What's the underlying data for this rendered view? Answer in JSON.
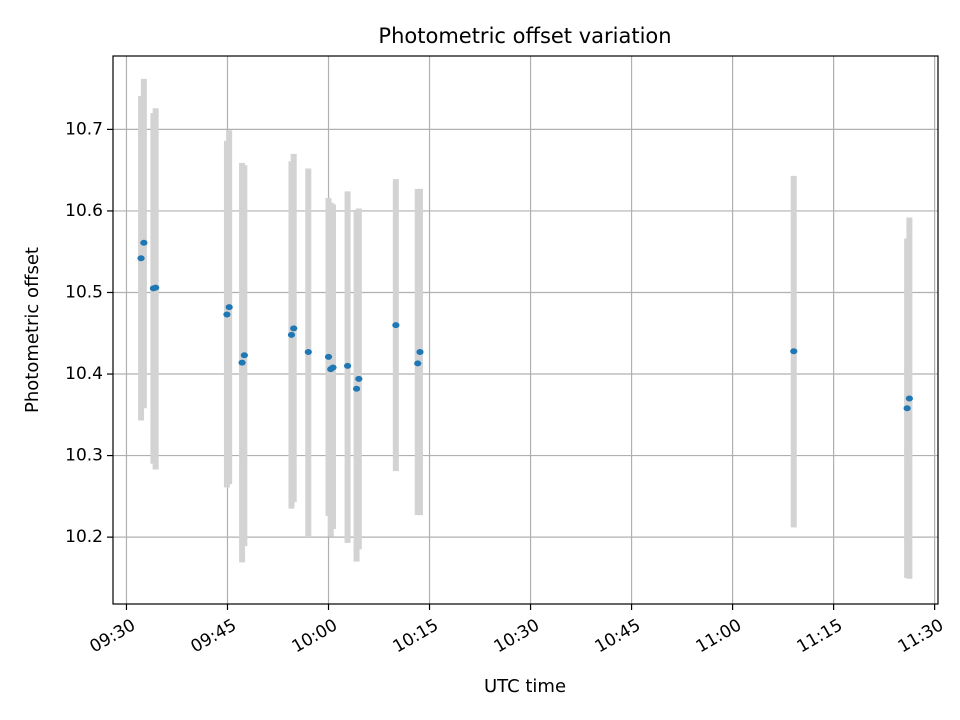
{
  "chart_data": {
    "type": "scatter",
    "title": "Photometric offset variation",
    "xlabel": "UTC time",
    "ylabel": "Photometric offset",
    "grid": true,
    "x_ticks": [
      "09:30",
      "09:45",
      "10:00",
      "10:15",
      "10:30",
      "10:45",
      "11:00",
      "11:15",
      "11:30"
    ],
    "y_ticks": [
      "10.2",
      "10.3",
      "10.4",
      "10.5",
      "10.6",
      "10.7"
    ],
    "xlim": [
      "09:28:00",
      "11:30:30"
    ],
    "ylim": [
      10.118,
      10.79
    ],
    "marker_color": "#1f77b4",
    "errorbar_color": "#d3d3d3",
    "points": [
      {
        "time": "09:32:10",
        "value": 10.542,
        "err_low": 10.343,
        "err_high": 10.741
      },
      {
        "time": "09:32:35",
        "value": 10.561,
        "err_low": 10.358,
        "err_high": 10.762
      },
      {
        "time": "09:34:00",
        "value": 10.505,
        "err_low": 10.29,
        "err_high": 10.72
      },
      {
        "time": "09:34:20",
        "value": 10.506,
        "err_low": 10.283,
        "err_high": 10.726
      },
      {
        "time": "09:44:55",
        "value": 10.473,
        "err_low": 10.261,
        "err_high": 10.686
      },
      {
        "time": "09:45:15",
        "value": 10.482,
        "err_low": 10.265,
        "err_high": 10.699
      },
      {
        "time": "09:47:10",
        "value": 10.414,
        "err_low": 10.169,
        "err_high": 10.659
      },
      {
        "time": "09:47:30",
        "value": 10.423,
        "err_low": 10.189,
        "err_high": 10.656
      },
      {
        "time": "09:54:30",
        "value": 10.448,
        "err_low": 10.235,
        "err_high": 10.661
      },
      {
        "time": "09:54:50",
        "value": 10.456,
        "err_low": 10.243,
        "err_high": 10.67
      },
      {
        "time": "09:57:00",
        "value": 10.427,
        "err_low": 10.2,
        "err_high": 10.652
      },
      {
        "time": "10:00:00",
        "value": 10.421,
        "err_low": 10.226,
        "err_high": 10.616
      },
      {
        "time": "10:00:20",
        "value": 10.406,
        "err_low": 10.201,
        "err_high": 10.61
      },
      {
        "time": "10:00:40",
        "value": 10.408,
        "err_low": 10.21,
        "err_high": 10.608
      },
      {
        "time": "10:02:50",
        "value": 10.41,
        "err_low": 10.193,
        "err_high": 10.624
      },
      {
        "time": "10:04:10",
        "value": 10.382,
        "err_low": 10.17,
        "err_high": 10.6
      },
      {
        "time": "10:04:30",
        "value": 10.394,
        "err_low": 10.185,
        "err_high": 10.603
      },
      {
        "time": "10:10:00",
        "value": 10.46,
        "err_low": 10.281,
        "err_high": 10.639
      },
      {
        "time": "10:13:15",
        "value": 10.413,
        "err_low": 10.227,
        "err_high": 10.627
      },
      {
        "time": "10:13:35",
        "value": 10.427,
        "err_low": 10.227,
        "err_high": 10.627
      },
      {
        "time": "11:09:05",
        "value": 10.428,
        "err_low": 10.212,
        "err_high": 10.643
      },
      {
        "time": "11:25:55",
        "value": 10.358,
        "err_low": 10.15,
        "err_high": 10.566
      },
      {
        "time": "11:26:15",
        "value": 10.37,
        "err_low": 10.149,
        "err_high": 10.592
      }
    ]
  }
}
